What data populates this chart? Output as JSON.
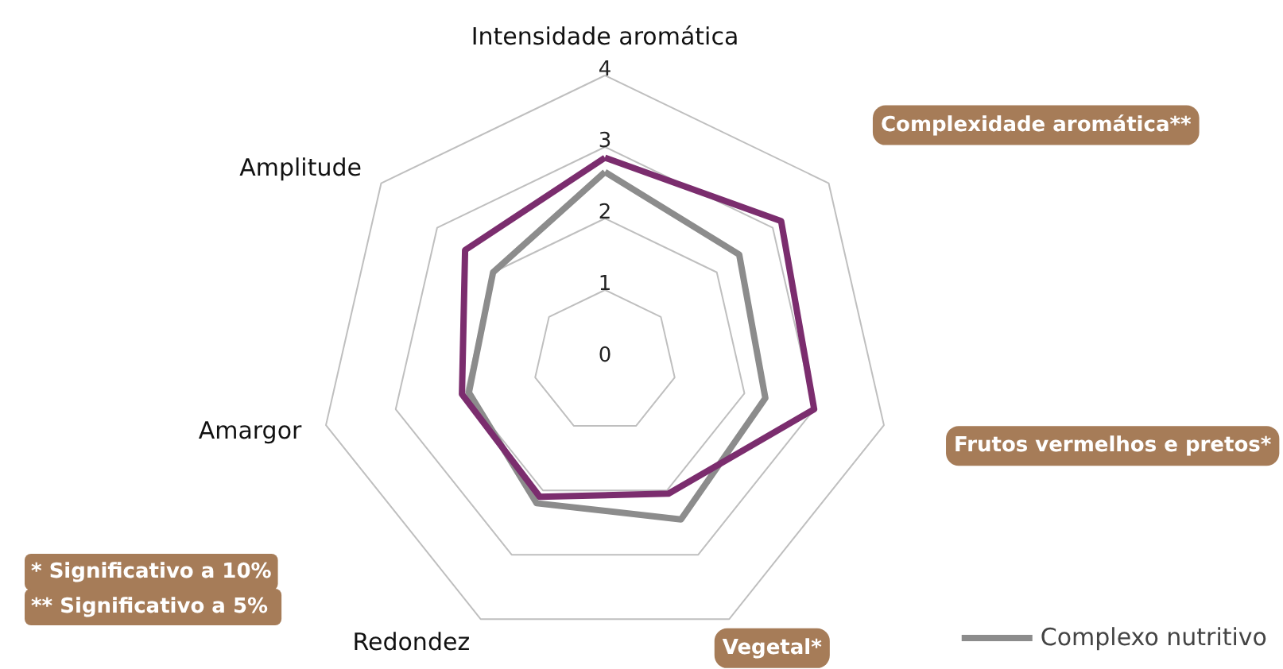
{
  "chart_data": {
    "type": "radar",
    "categories": [
      "Intensidade aromática",
      "Complexidade aromática**",
      "Frutos vermelhos e pretos*",
      "Vegetal*",
      "Redondez",
      "Amargor",
      "Amplitude"
    ],
    "series": [
      {
        "name": "Complexo nutritivo",
        "color": "#8c8c8c",
        "values": [
          2.65,
          2.4,
          2.3,
          2.45,
          2.2,
          1.95,
          2.0
        ]
      },
      {
        "color": "#7b2d6e",
        "values": [
          2.85,
          3.15,
          3.0,
          2.05,
          2.1,
          2.05,
          2.5
        ]
      }
    ],
    "ylim": [
      0,
      4
    ],
    "yticks": [
      0,
      1,
      2,
      3,
      4
    ],
    "legend": "bottom right",
    "annotations": [
      "* Significativo a 10%",
      "** Significativo a  5%"
    ]
  }
}
